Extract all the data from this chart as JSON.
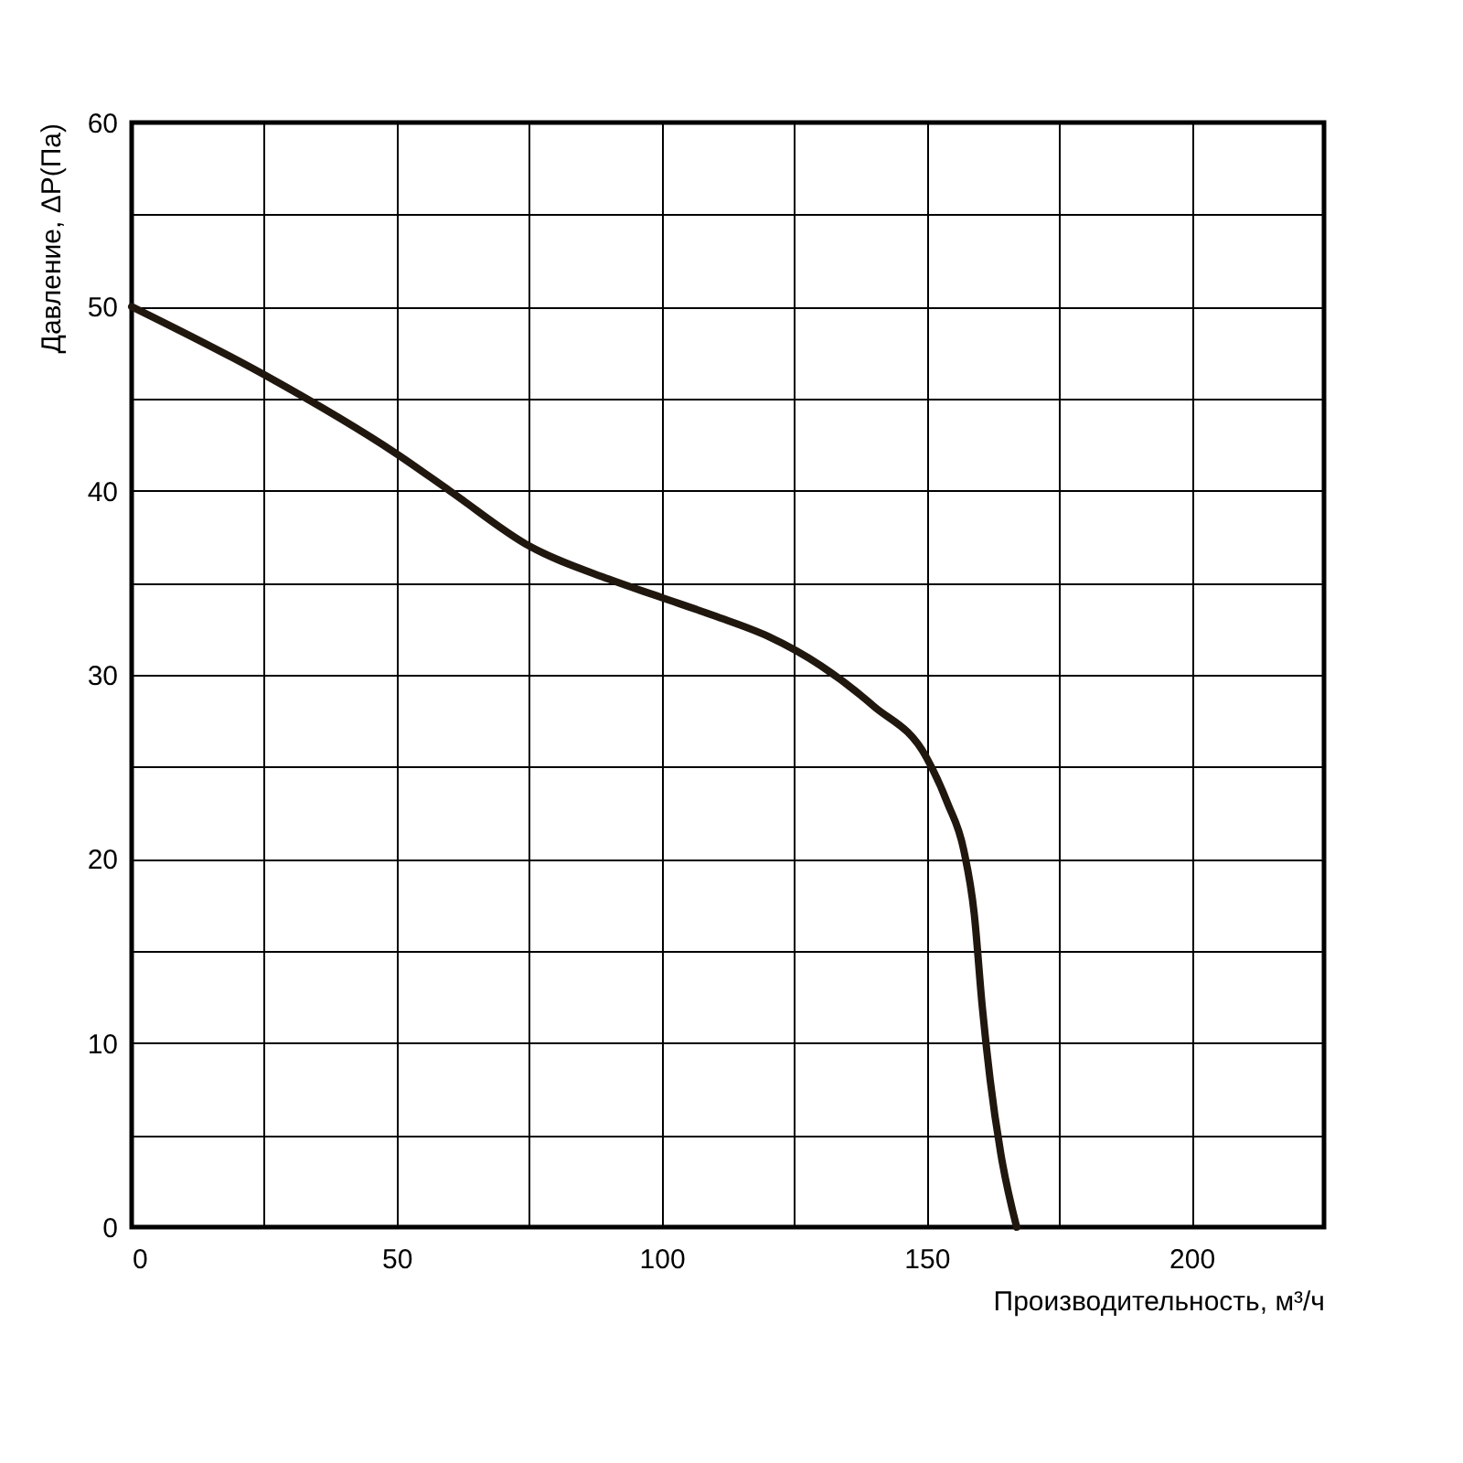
{
  "chart_data": {
    "type": "line",
    "xlabel": "Производительность, м³/ч",
    "ylabel": "Давление, ΔP(Па)",
    "x": [
      0,
      25,
      50,
      60,
      75,
      90,
      100,
      110,
      120,
      130,
      140,
      150,
      154,
      157,
      159,
      160.5,
      162,
      164,
      167
    ],
    "series": [
      {
        "color": "#20170f",
        "values": [
          50,
          46.3,
          42,
          40,
          37,
          35.2,
          34.2,
          33.2,
          32.1,
          30.5,
          28.3,
          25.5,
          23,
          20.5,
          17,
          12,
          8,
          4,
          0
        ]
      }
    ],
    "xlim": [
      0,
      225
    ],
    "ylim": [
      0,
      60
    ],
    "xticks": [
      0,
      {
        "value": 25,
        "label": null
      },
      50,
      {
        "value": 75,
        "label": null
      },
      100,
      {
        "value": 125,
        "label": null
      },
      150,
      {
        "value": 175,
        "label": null
      },
      200
    ],
    "yticks": [
      0,
      {
        "value": 5,
        "label": null
      },
      10,
      {
        "value": 15,
        "label": null
      },
      20,
      {
        "value": 25,
        "label": null
      },
      30,
      {
        "value": 35,
        "label": null
      },
      40,
      {
        "value": 45,
        "label": null
      },
      50,
      {
        "value": 55,
        "label": null
      },
      60
    ],
    "grid": true,
    "marker": "none",
    "line_style": "solid"
  }
}
